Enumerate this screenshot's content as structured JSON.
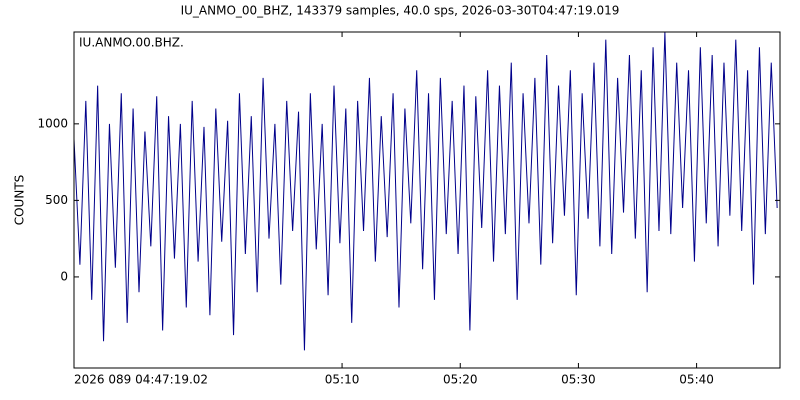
{
  "chart_data": {
    "type": "line",
    "title": "IU_ANMO_00_BHZ, 143379 samples, 40.0 sps, 2026-03-30T04:47:19.019",
    "annotation": "IU.ANMO.00.BHZ.",
    "ylabel": "COUNTS",
    "xlim": [
      0,
      3584.45
    ],
    "xticks": [
      {
        "value": 0,
        "label": "2026 089 04:47:19.02"
      },
      {
        "value": 1361,
        "label": "05:10"
      },
      {
        "value": 1961,
        "label": "05:20"
      },
      {
        "value": 2561,
        "label": "05:30"
      },
      {
        "value": 3161,
        "label": "05:40"
      }
    ],
    "ylim": [
      -595,
      1600
    ],
    "yticks": [
      0,
      500,
      1000
    ],
    "x": [
      0,
      30,
      60,
      90,
      120,
      150,
      180,
      210,
      240,
      270,
      300,
      330,
      360,
      390,
      420,
      450,
      480,
      510,
      540,
      570,
      600,
      630,
      660,
      690,
      720,
      750,
      780,
      810,
      840,
      870,
      900,
      930,
      960,
      990,
      1020,
      1050,
      1080,
      1110,
      1140,
      1170,
      1200,
      1230,
      1260,
      1290,
      1320,
      1350,
      1380,
      1410,
      1440,
      1470,
      1500,
      1530,
      1560,
      1590,
      1620,
      1650,
      1680,
      1710,
      1740,
      1770,
      1800,
      1830,
      1860,
      1890,
      1920,
      1950,
      1980,
      2010,
      2040,
      2070,
      2100,
      2130,
      2160,
      2190,
      2220,
      2250,
      2280,
      2310,
      2340,
      2370,
      2400,
      2430,
      2460,
      2490,
      2520,
      2550,
      2580,
      2610,
      2640,
      2670,
      2700,
      2730,
      2760,
      2790,
      2820,
      2850,
      2880,
      2910,
      2940,
      2970,
      3000,
      3030,
      3060,
      3090,
      3120,
      3150,
      3180,
      3210,
      3240,
      3270,
      3300,
      3330,
      3360,
      3390,
      3420,
      3450,
      3480,
      3510,
      3540,
      3570
    ],
    "series": [
      {
        "name": "IU.ANMO.00.BHZ",
        "color": "#00008b",
        "values": [
          900,
          80,
          1150,
          -150,
          1250,
          -420,
          1000,
          60,
          1200,
          -300,
          1100,
          -100,
          950,
          200,
          1180,
          -350,
          1050,
          120,
          1000,
          -200,
          1150,
          100,
          980,
          -250,
          1100,
          230,
          1020,
          -380,
          1200,
          150,
          1050,
          -100,
          1300,
          250,
          1000,
          -50,
          1150,
          300,
          1080,
          -480,
          1200,
          180,
          1000,
          -120,
          1250,
          220,
          1100,
          -300,
          1150,
          300,
          1300,
          100,
          1050,
          260,
          1200,
          -200,
          1100,
          350,
          1350,
          50,
          1200,
          -150,
          1300,
          280,
          1150,
          150,
          1250,
          -350,
          1180,
          320,
          1350,
          100,
          1250,
          280,
          1400,
          -150,
          1200,
          350,
          1300,
          80,
          1450,
          220,
          1250,
          400,
          1350,
          -120,
          1200,
          380,
          1400,
          200,
          1550,
          150,
          1300,
          420,
          1450,
          250,
          1350,
          -100,
          1500,
          300,
          1600,
          280,
          1400,
          450,
          1350,
          100,
          1500,
          350,
          1450,
          200,
          1400,
          400,
          1550,
          300,
          1350,
          -50,
          1500,
          280,
          1400,
          450
        ]
      }
    ]
  }
}
